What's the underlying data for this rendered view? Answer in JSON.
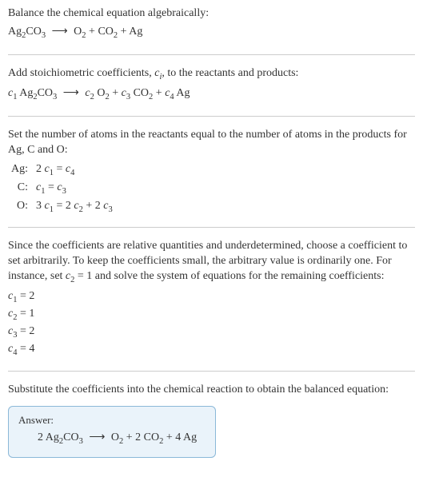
{
  "section1": {
    "intro": "Balance the chemical equation algebraically:",
    "lhs1": "Ag",
    "lhs1_sub": "2",
    "lhs2": "CO",
    "lhs2_sub": "3",
    "arrow": "⟶",
    "r1": "O",
    "r1_sub": "2",
    "plus": " + ",
    "r2": "CO",
    "r2_sub": "2",
    "r3": "Ag"
  },
  "section2": {
    "intro_a": "Add stoichiometric coefficients, ",
    "ci": "c",
    "ci_sub": "i",
    "intro_b": ", to the reactants and products:",
    "c1": "c",
    "c1_sub": "1",
    "sp": " ",
    "lhs1": "Ag",
    "lhs1_sub": "2",
    "lhs2": "CO",
    "lhs2_sub": "3",
    "arrow": "⟶",
    "c2": "c",
    "c2_sub": "2",
    "r1": "O",
    "r1_sub": "2",
    "plus": " + ",
    "c3": "c",
    "c3_sub": "3",
    "r2": "CO",
    "r2_sub": "2",
    "c4": "c",
    "c4_sub": "4",
    "r3": "Ag"
  },
  "section3": {
    "intro": "Set the number of atoms in the reactants equal to the number of atoms in the products for Ag, C and O:",
    "rows": {
      "ag_lbl": "Ag:",
      "ag_lhs_coef": "2 ",
      "ag_c1": "c",
      "ag_c1_sub": "1",
      "ag_eq": " = ",
      "ag_c4": "c",
      "ag_c4_sub": "4",
      "c_lbl": "C:",
      "c_c1": "c",
      "c_c1_sub": "1",
      "c_eq": " = ",
      "c_c3": "c",
      "c_c3_sub": "3",
      "o_lbl": "O:",
      "o_lhs_coef": "3 ",
      "o_c1": "c",
      "o_c1_sub": "1",
      "o_eq": " = ",
      "o_r1_coef": "2 ",
      "o_c2": "c",
      "o_c2_sub": "2",
      "o_plus": " + ",
      "o_r2_coef": "2 ",
      "o_c3": "c",
      "o_c3_sub": "3"
    }
  },
  "section4": {
    "intro_a": "Since the coefficients are relative quantities and underdetermined, choose a coefficient to set arbitrarily. To keep the coefficients small, the arbitrary value is ordinarily one. For instance, set ",
    "c2": "c",
    "c2_sub": "2",
    "intro_b": " = 1 and solve the system of equations for the remaining coefficients:",
    "l1_c": "c",
    "l1_sub": "1",
    "l1_val": " = 2",
    "l2_c": "c",
    "l2_sub": "2",
    "l2_val": " = 1",
    "l3_c": "c",
    "l3_sub": "3",
    "l3_val": " = 2",
    "l4_c": "c",
    "l4_sub": "4",
    "l4_val": " = 4"
  },
  "section5": {
    "intro": "Substitute the coefficients into the chemical reaction to obtain the balanced equation:",
    "answer_label": "Answer:",
    "coef1": "2 ",
    "lhs1": "Ag",
    "lhs1_sub": "2",
    "lhs2": "CO",
    "lhs2_sub": "3",
    "arrow": "⟶",
    "r1": "O",
    "r1_sub": "2",
    "plus": " + ",
    "coef3": "2 ",
    "r2": "CO",
    "r2_sub": "2",
    "coef4": "4 ",
    "r3": "Ag"
  },
  "colors": {
    "text": "#333333",
    "divider": "#cccccc",
    "answer_border": "#8bb8d8",
    "answer_bg": "#eaf3fa"
  }
}
